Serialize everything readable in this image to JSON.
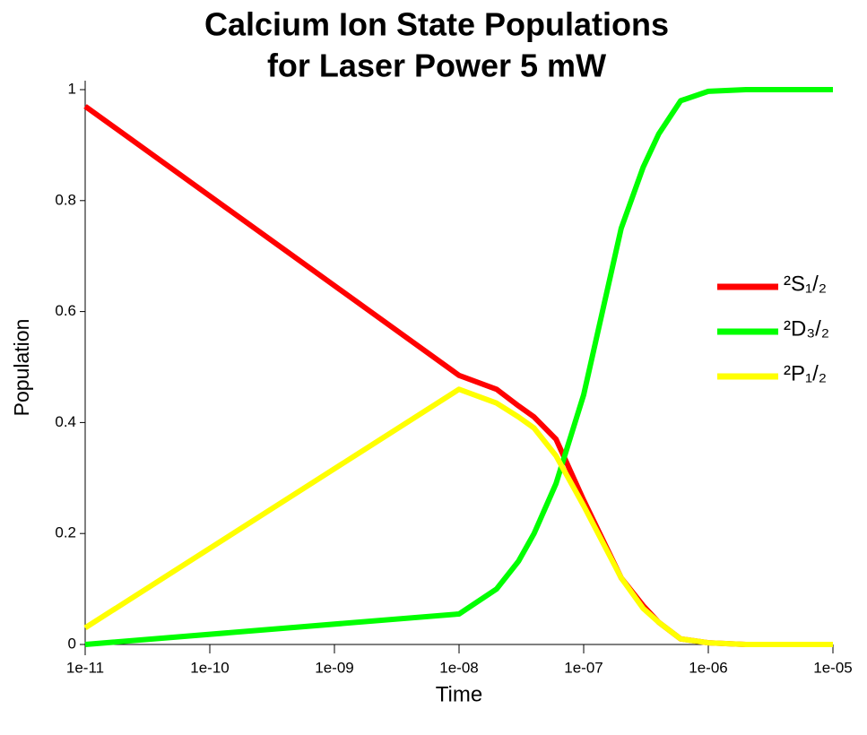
{
  "chart_data": {
    "type": "line",
    "title": [
      "Calcium Ion State Populations",
      "for Laser Power 5 mW"
    ],
    "x_label": "Time",
    "y_label": "Population",
    "xscale": "log",
    "x": [
      1e-11,
      1e-08,
      2e-08,
      3e-08,
      4e-08,
      6e-08,
      1e-07,
      2e-07,
      3e-07,
      4e-07,
      6e-07,
      1e-06,
      2e-06,
      1e-05
    ],
    "series": [
      {
        "name": "²S₁/₂",
        "color": "#ff0000",
        "values": [
          0.97,
          0.485,
          0.46,
          0.43,
          0.41,
          0.37,
          0.26,
          0.12,
          0.07,
          0.04,
          0.01,
          0.003,
          0,
          0
        ]
      },
      {
        "name": "²D₃/₂",
        "color": "#00ff00",
        "values": [
          0,
          0.055,
          0.1,
          0.15,
          0.2,
          0.29,
          0.45,
          0.75,
          0.86,
          0.92,
          0.98,
          0.997,
          1,
          1
        ]
      },
      {
        "name": "²P₁/₂",
        "color": "#ffff00",
        "values": [
          0.03,
          0.46,
          0.435,
          0.41,
          0.39,
          0.34,
          0.25,
          0.12,
          0.065,
          0.04,
          0.01,
          0.003,
          0,
          0
        ]
      }
    ],
    "xlim": [
      1e-11,
      1e-05
    ],
    "xticks": [
      {
        "value": 1e-11,
        "label": "1e-11"
      },
      {
        "value": 1e-10,
        "label": "1e-10"
      },
      {
        "value": 1e-09,
        "label": "1e-09"
      },
      {
        "value": 1e-08,
        "label": "1e-08"
      },
      {
        "value": 1e-07,
        "label": "1e-07"
      },
      {
        "value": 1e-06,
        "label": "1e-06"
      },
      {
        "value": 1e-05,
        "label": "1e-05"
      }
    ],
    "ylim": [
      0,
      1
    ],
    "yticks": [
      0,
      0.2,
      0.4,
      0.6,
      0.8,
      1
    ],
    "legend": "right"
  }
}
